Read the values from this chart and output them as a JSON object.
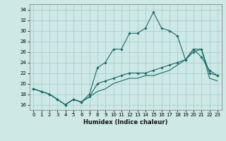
{
  "title": "",
  "xlabel": "Humidex (Indice chaleur)",
  "xlim": [
    -0.5,
    23.5
  ],
  "ylim": [
    15.0,
    35.0
  ],
  "yticks": [
    16,
    18,
    20,
    22,
    24,
    26,
    28,
    30,
    32,
    34
  ],
  "xticks": [
    0,
    1,
    2,
    3,
    4,
    5,
    6,
    7,
    8,
    9,
    10,
    11,
    12,
    13,
    14,
    15,
    16,
    17,
    18,
    19,
    20,
    21,
    22,
    23
  ],
  "background_color": "#cde8e5",
  "grid_color": "#9ecece",
  "line_color": "#1a6b6b",
  "line2_x": [
    0,
    1,
    2,
    3,
    4,
    5,
    6,
    7,
    8,
    9,
    10,
    11,
    12,
    13,
    14,
    15,
    16,
    17,
    18,
    19,
    20,
    21,
    22,
    23
  ],
  "line2_y": [
    19,
    18.5,
    18,
    17,
    16,
    17,
    16.5,
    18,
    23,
    24,
    26.5,
    26.5,
    29.5,
    29.5,
    30.5,
    33.5,
    30.5,
    30,
    29,
    24.5,
    26.5,
    25,
    22.5,
    21.5
  ],
  "line1_x": [
    0,
    1,
    2,
    3,
    4,
    5,
    6,
    7,
    8,
    9,
    10,
    11,
    12,
    13,
    14,
    15,
    16,
    17,
    18,
    19,
    20,
    21,
    22,
    23
  ],
  "line1_y": [
    19,
    18.5,
    18,
    17,
    16,
    17,
    16.5,
    17.5,
    20,
    20.5,
    21,
    21.5,
    22,
    22,
    22,
    22.5,
    23,
    23.5,
    24,
    24.5,
    26,
    26.5,
    22,
    21.5
  ],
  "line3_x": [
    0,
    1,
    2,
    3,
    4,
    5,
    6,
    7,
    8,
    9,
    10,
    11,
    12,
    13,
    14,
    15,
    16,
    17,
    18,
    19,
    20,
    21,
    22,
    23
  ],
  "line3_y": [
    19,
    18.5,
    18,
    17,
    16,
    17,
    16.5,
    17.5,
    18.5,
    19,
    20,
    20.5,
    21,
    21,
    21.5,
    21.5,
    22,
    22.5,
    23.5,
    24.5,
    26.5,
    26.5,
    21,
    20.5
  ]
}
